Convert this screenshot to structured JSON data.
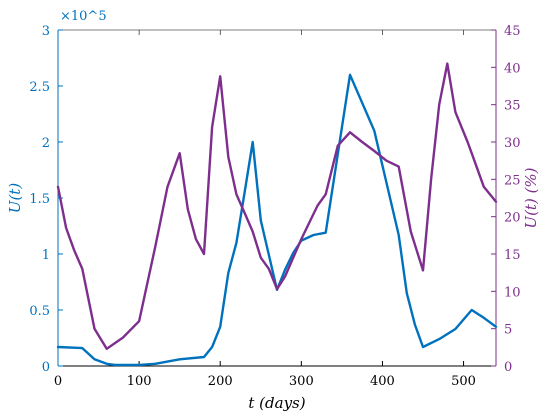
{
  "colors": {
    "left_axis": "#0072BD",
    "right_axis": "#7E2F8E",
    "axis_black": "#000000"
  },
  "chart_data": {
    "type": "line",
    "title": "",
    "xlabel": "t (days)",
    "ylabel_left": "U(t)",
    "ylabel_right": "U(t) (%)",
    "left_exponent_label": "×10^5",
    "xlim": [
      0,
      540
    ],
    "ylim_left": [
      0,
      3
    ],
    "ylim_right": [
      0,
      45
    ],
    "x_ticks": [
      0,
      100,
      200,
      300,
      400,
      500
    ],
    "y_left_ticks": [
      0,
      0.5,
      1,
      1.5,
      2,
      2.5,
      3
    ],
    "y_right_ticks": [
      0,
      5,
      10,
      15,
      20,
      25,
      30,
      35,
      40,
      45
    ],
    "grid": false,
    "legend": "none",
    "series": [
      {
        "axis": "left",
        "color": "#0072BD",
        "x": [
          0,
          30,
          45,
          60,
          70,
          80,
          100,
          120,
          150,
          180,
          190,
          200,
          210,
          220,
          230,
          240,
          250,
          260,
          270,
          280,
          290,
          300,
          315,
          330,
          360,
          390,
          420,
          430,
          440,
          450,
          470,
          490,
          510,
          525,
          540
        ],
        "y": [
          0.17,
          0.16,
          0.06,
          0.02,
          0.01,
          0.01,
          0.01,
          0.02,
          0.06,
          0.08,
          0.17,
          0.35,
          0.83,
          1.1,
          1.55,
          2.0,
          1.3,
          0.99,
          0.68,
          0.86,
          1.01,
          1.12,
          1.17,
          1.19,
          2.6,
          2.1,
          1.17,
          0.65,
          0.37,
          0.17,
          0.24,
          0.33,
          0.5,
          0.43,
          0.35
        ]
      },
      {
        "axis": "right",
        "color": "#7E2F8E",
        "x": [
          0,
          10,
          20,
          30,
          45,
          60,
          80,
          100,
          120,
          135,
          150,
          160,
          170,
          180,
          190,
          200,
          210,
          220,
          230,
          240,
          250,
          260,
          270,
          280,
          300,
          320,
          330,
          345,
          360,
          375,
          390,
          405,
          420,
          435,
          450,
          460,
          470,
          480,
          490,
          505,
          510,
          525,
          540
        ],
        "y": [
          24,
          18.5,
          15.5,
          13,
          5,
          2.3,
          3.8,
          6,
          16,
          24,
          28.5,
          21,
          17,
          15,
          32,
          38.8,
          28,
          23,
          20.5,
          18,
          14.5,
          13,
          10.3,
          12,
          17,
          21.5,
          23,
          29.5,
          31.3,
          30,
          28.8,
          27.5,
          26.7,
          18,
          12.8,
          25,
          35,
          40.5,
          34,
          30,
          28.5,
          24,
          22
        ]
      }
    ]
  }
}
